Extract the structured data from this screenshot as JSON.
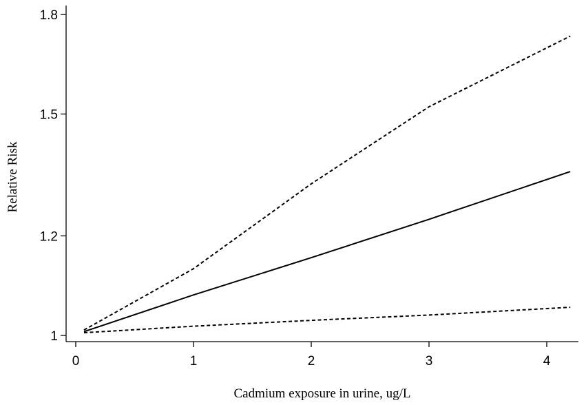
{
  "chart_data": {
    "type": "line",
    "title": "",
    "xlabel": "Cadmium exposure in urine, ug/L",
    "ylabel": "Relative Risk",
    "xlim": [
      0,
      4.3
    ],
    "ylim": [
      0.97,
      1.8
    ],
    "y_scale": "log",
    "x_ticks": [
      0,
      1,
      2,
      3,
      4
    ],
    "x_tick_labels": [
      "0",
      "1",
      "2",
      "3",
      "4"
    ],
    "y_ticks": [
      1,
      1.2,
      1.5,
      1.8
    ],
    "y_tick_labels": [
      "1",
      "1.2",
      "1.5",
      "1.8"
    ],
    "grid": false,
    "legend": "none",
    "series": [
      {
        "style": "solid",
        "x": [
          0.07,
          1.0,
          2.0,
          3.0,
          4.2
        ],
        "y": [
          1.007,
          1.077,
          1.153,
          1.237,
          1.35
        ]
      },
      {
        "style": "dashed",
        "x": [
          0.07,
          1.0,
          2.0,
          3.0,
          4.2
        ],
        "y": [
          1.01,
          1.13,
          1.32,
          1.52,
          1.73
        ]
      },
      {
        "style": "dashed",
        "x": [
          0.07,
          1.0,
          2.0,
          3.0,
          4.2
        ],
        "y": [
          1.005,
          1.017,
          1.028,
          1.038,
          1.053
        ]
      }
    ]
  }
}
